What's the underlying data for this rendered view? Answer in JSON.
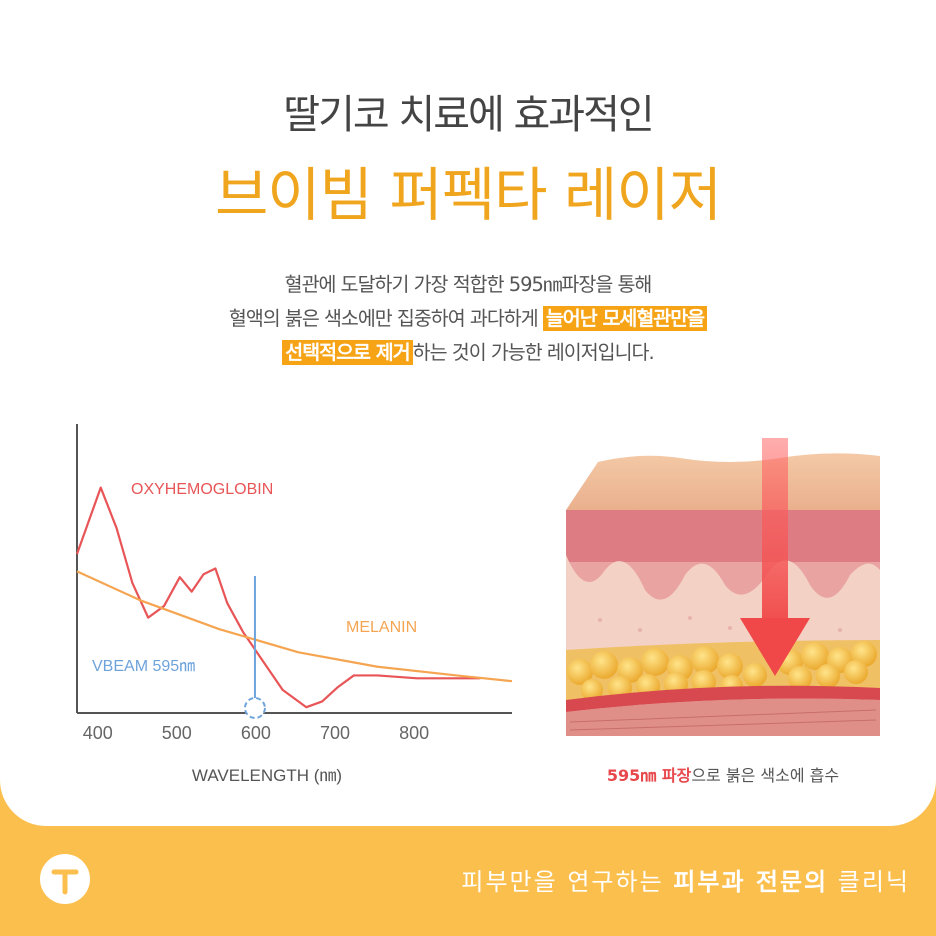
{
  "header": {
    "title_line1": "딸기코 치료에 효과적인",
    "title_line2": "브이빔 퍼펙타 레이저"
  },
  "description": {
    "line1": "혈관에 도달하기 가장 적합한 595㎚파장을 통해",
    "line2_pre": "혈액의 붉은 색소에만 집중하여 과다하게 ",
    "line2_highlight": "늘어난 모세혈관만을",
    "line3_highlight": "선택적으로 제거",
    "line3_post": "하는 것이 가능한 레이저입니다."
  },
  "chart_data": {
    "type": "line",
    "xlabel": "WAVELENGTH (㎚)",
    "ylabel": "",
    "x_ticks": [
      "400",
      "500",
      "600",
      "700",
      "800"
    ],
    "xlim": [
      370,
      920
    ],
    "series": [
      {
        "name": "OXYHEMOGLOBIN",
        "color": "#e85557",
        "x": [
          370,
          400,
          420,
          440,
          460,
          480,
          500,
          515,
          530,
          545,
          560,
          580,
          600,
          630,
          660,
          680,
          700,
          720,
          750,
          800,
          880
        ],
        "y": [
          0.55,
          0.78,
          0.64,
          0.45,
          0.33,
          0.37,
          0.47,
          0.42,
          0.48,
          0.5,
          0.38,
          0.28,
          0.2,
          0.08,
          0.02,
          0.04,
          0.09,
          0.13,
          0.13,
          0.12,
          0.12
        ]
      },
      {
        "name": "MELANIN",
        "color": "#f5a552",
        "x": [
          370,
          450,
          550,
          650,
          750,
          850,
          920
        ],
        "y": [
          0.49,
          0.39,
          0.29,
          0.21,
          0.16,
          0.13,
          0.11
        ]
      }
    ],
    "annotations": [
      {
        "label": "VBEAM 595㎚",
        "x": 595,
        "color": "#6ea3dc"
      }
    ]
  },
  "skin_caption": {
    "highlight": "595㎚ 파장",
    "rest": "으로 붉은 색소에 흡수"
  },
  "footer": {
    "text_regular": "피부만을 연구하는 ",
    "text_bold": "피부과 전문의",
    "text_end": " 클리닉"
  },
  "colors": {
    "accent": "#f0a51e",
    "footer_bg": "#fbbf4e",
    "arrow": "#f05a5a"
  }
}
